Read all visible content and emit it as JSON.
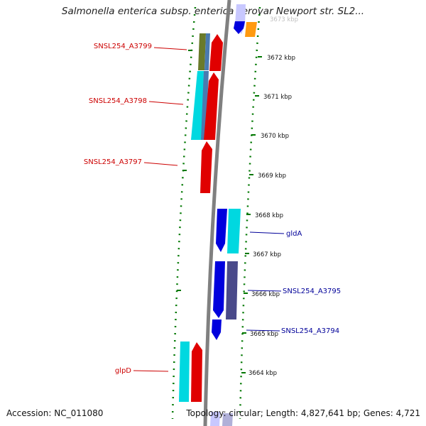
{
  "header": {
    "title": "Salmonella enterica subsp. enterica serovar Newport str. SL2..."
  },
  "footer": {
    "accession": "Accession: NC_011080",
    "summary": "Topology: circular; Length: 4,827,641 bp; Genes: 4,721"
  },
  "scale": {
    "top_label": "3673 kbp",
    "ticks": [
      "3672 kbp",
      "3671 kbp",
      "3670 kbp",
      "3669 kbp",
      "3668 kbp",
      "3667 kbp",
      "3666 kbp",
      "3665 kbp",
      "3664 kbp"
    ]
  },
  "colors": {
    "backbone": "#808080",
    "forward_strand": "#e00000",
    "reverse_strand": "#0000dd",
    "teal": "#00d8e0",
    "slate": "#4a4a8a",
    "olive": "#6a7a2a",
    "orange": "#ff9a10",
    "lavender": "#c8c8ff",
    "track_dots": "#007700",
    "left_labels": "#cc0000",
    "right_labels": "#000099"
  },
  "genes": {
    "SNSL254_A3799": "SNSL254_A3799",
    "SNSL254_A3798": "SNSL254_A3798",
    "SNSL254_A3797": "SNSL254_A3797",
    "glpD": "glpD",
    "gldA": "gldA",
    "SNSL254_A3795": "SNSL254_A3795",
    "SNSL254_A3794": "SNSL254_A3794"
  }
}
